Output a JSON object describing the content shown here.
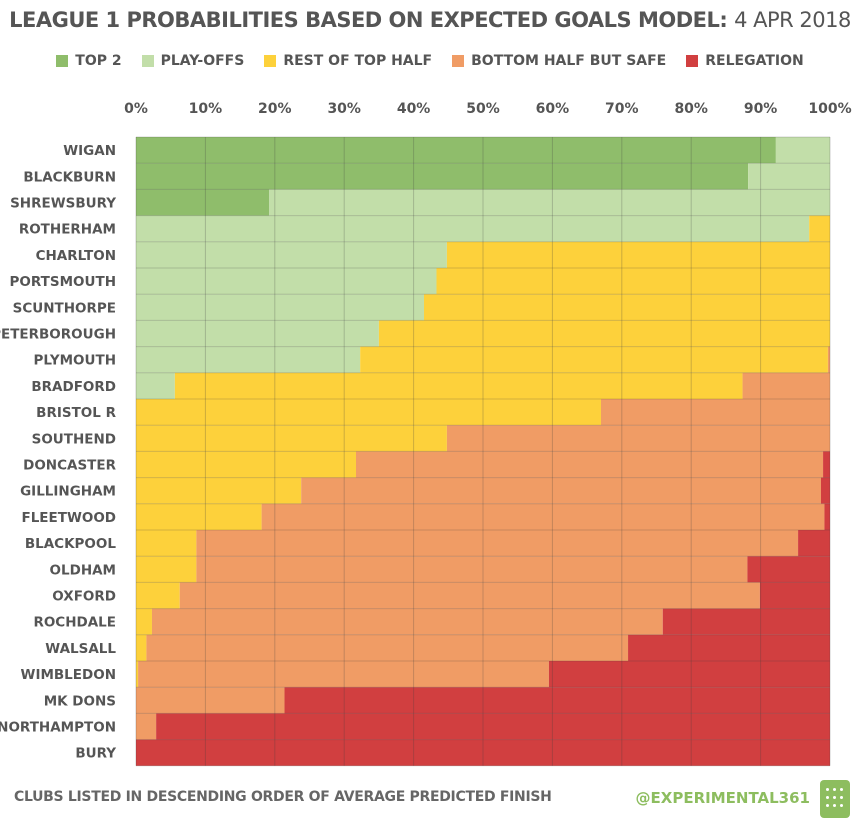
{
  "chart_data": {
    "type": "bar",
    "orientation": "horizontal-stacked-100",
    "title": "LEAGUE 1 PROBABILITIES BASED ON EXPECTED GOALS MODEL:",
    "title_date": "4 APR 2018",
    "x_ticks": [
      "0%",
      "10%",
      "20%",
      "30%",
      "40%",
      "50%",
      "60%",
      "70%",
      "80%",
      "90%",
      "100%"
    ],
    "xlim": [
      0,
      100
    ],
    "legend_position": "top",
    "series": [
      {
        "name": "TOP 2",
        "color": "#8fbd6b"
      },
      {
        "name": "PLAY-OFFS",
        "color": "#c2dea9"
      },
      {
        "name": "REST OF TOP HALF",
        "color": "#fdd13b"
      },
      {
        "name": "BOTTOM HALF BUT SAFE",
        "color": "#f09c65"
      },
      {
        "name": "RELEGATION",
        "color": "#d13f40"
      }
    ],
    "categories": [
      "WIGAN",
      "BLACKBURN",
      "SHREWSBURY",
      "ROTHERHAM",
      "CHARLTON",
      "PORTSMOUTH",
      "SCUNTHORPE",
      "PETERBOROUGH",
      "PLYMOUTH",
      "BRADFORD",
      "BRISTOL R",
      "SOUTHEND",
      "DONCASTER",
      "GILLINGHAM",
      "FLEETWOOD",
      "BLACKPOOL",
      "OLDHAM",
      "OXFORD",
      "ROCHDALE",
      "WALSALL",
      "WIMBLEDON",
      "MK DONS",
      "NORTHAMPTON",
      "BURY"
    ],
    "values": [
      [
        92.2,
        7.8,
        0,
        0,
        0
      ],
      [
        88.2,
        11.8,
        0,
        0,
        0
      ],
      [
        19.2,
        80.8,
        0,
        0,
        0
      ],
      [
        0,
        97,
        3,
        0,
        0
      ],
      [
        0,
        44.8,
        55.2,
        0,
        0
      ],
      [
        0,
        43.3,
        56.7,
        0,
        0
      ],
      [
        0,
        41.5,
        58.5,
        0,
        0
      ],
      [
        0,
        35,
        65,
        0,
        0
      ],
      [
        0,
        32.3,
        67.4,
        0.3,
        0
      ],
      [
        0,
        5.6,
        81.8,
        12.6,
        0
      ],
      [
        0,
        0,
        67,
        33,
        0
      ],
      [
        0,
        0,
        44.8,
        55.2,
        0
      ],
      [
        0,
        0,
        31.7,
        67.3,
        1
      ],
      [
        0,
        0,
        23.8,
        74.9,
        1.3
      ],
      [
        0,
        0,
        18.1,
        81.1,
        0.8
      ],
      [
        0,
        0,
        8.7,
        86.7,
        4.6
      ],
      [
        0,
        0,
        8.7,
        79.4,
        11.9
      ],
      [
        0,
        0,
        6.3,
        83.6,
        10.1
      ],
      [
        0,
        0,
        2.3,
        73.6,
        24.1
      ],
      [
        0,
        0,
        1.5,
        69.4,
        29.1
      ],
      [
        0,
        0,
        0.3,
        59.2,
        40.5
      ],
      [
        0,
        0,
        0,
        21.4,
        78.6
      ],
      [
        0,
        0,
        0,
        2.9,
        97.1
      ],
      [
        0,
        0,
        0,
        0,
        100
      ]
    ]
  },
  "footer": {
    "note": "CLUBS LISTED IN DESCENDING ORDER OF AVERAGE PREDICTED FINISH",
    "handle": "@EXPERIMENTAL361"
  }
}
